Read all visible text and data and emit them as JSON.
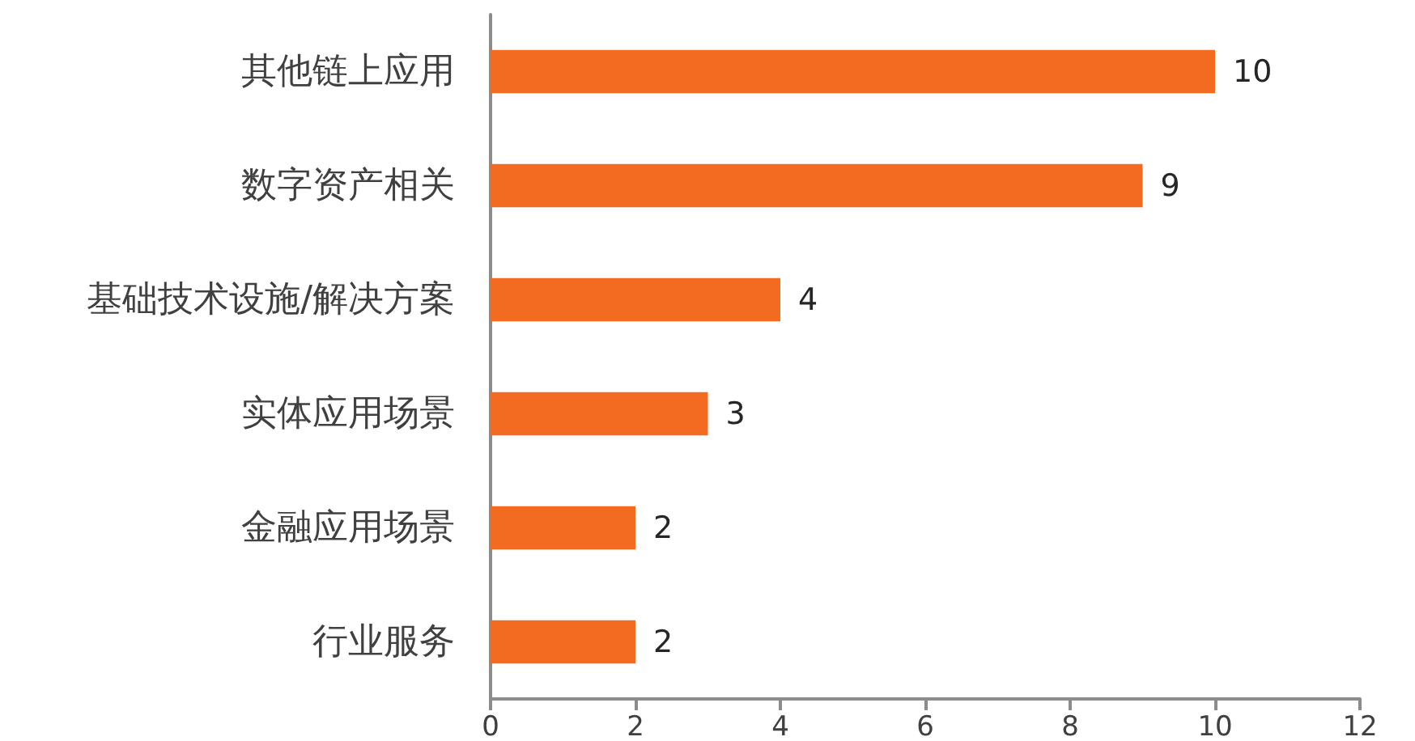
{
  "chart_data": {
    "type": "bar",
    "orientation": "horizontal",
    "categories": [
      "其他链上应用",
      "数字资产相关",
      "基础技术设施/解决方案",
      "实体应用场景",
      "金融应用场景",
      "行业服务"
    ],
    "values": [
      10,
      9,
      4,
      3,
      2,
      2
    ],
    "color": "#f26b21",
    "xlim": [
      0,
      12
    ],
    "xticks": [
      0,
      2,
      4,
      6,
      8,
      10,
      12
    ],
    "data_labels": true,
    "grid": false
  }
}
